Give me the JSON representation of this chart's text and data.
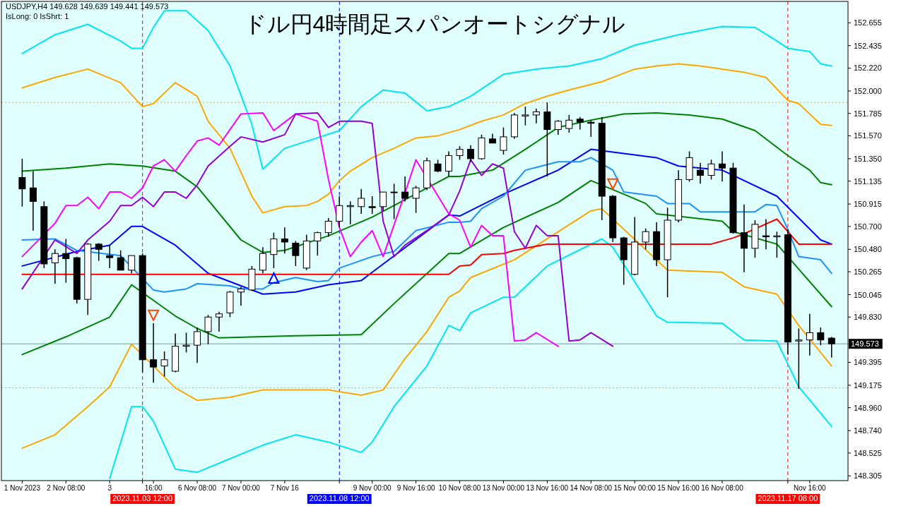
{
  "chart_data": {
    "type": "candlestick",
    "title": "ドル円4時間足スパンオートシグナル",
    "annotations": [
      "USDJPY,H4  149.628 149.639 149.441 149.573",
      "IsLong: 0 IsShrt: 1"
    ],
    "categories": [
      "1 Nov 2023",
      null,
      null,
      null,
      "2 Nov 08:00",
      null,
      null,
      null,
      "3",
      null,
      null,
      "2023.11.03 12:00",
      "16:00",
      null,
      null,
      null,
      "6 Nov 08:00",
      null,
      null,
      null,
      "7 Nov 00:00",
      null,
      null,
      null,
      "7 Nov 16",
      null,
      null,
      null,
      null,
      "2023.11.08 12:00",
      null,
      null,
      "9 Nov 00:00",
      null,
      null,
      null,
      "9 Nov 16:00",
      null,
      null,
      null,
      "10 Nov 08:00",
      null,
      null,
      null,
      "13 Nov 00:00",
      null,
      null,
      null,
      "13 Nov 16:00",
      null,
      null,
      null,
      "14 Nov 08:00",
      null,
      null,
      null,
      "15 Nov 00:00",
      null,
      null,
      null,
      "15 Nov 16:00",
      null,
      null,
      null,
      "16 Nov 08:00",
      null,
      null,
      null,
      null,
      null,
      "2023.11.17 08:00",
      null,
      "Nov 16:00",
      null,
      null
    ],
    "ohlc": [
      [
        151.17,
        151.35,
        150.89,
        151.06
      ],
      [
        151.07,
        151.23,
        150.66,
        150.94
      ],
      [
        150.89,
        150.94,
        150.3,
        150.34
      ],
      [
        150.35,
        150.48,
        150.15,
        150.44
      ],
      [
        150.44,
        150.58,
        150.16,
        150.39
      ],
      [
        150.4,
        150.41,
        149.96,
        150.0
      ],
      [
        150.0,
        150.54,
        149.85,
        150.53
      ],
      [
        150.53,
        150.54,
        150.37,
        150.48
      ],
      [
        150.42,
        150.52,
        150.3,
        150.4
      ],
      [
        150.4,
        150.47,
        150.28,
        150.28
      ],
      [
        150.28,
        150.42,
        150.25,
        150.42
      ],
      [
        150.42,
        150.44,
        149.3,
        149.42
      ],
      [
        149.42,
        149.77,
        149.2,
        149.35
      ],
      [
        149.36,
        149.5,
        149.26,
        149.42
      ],
      [
        149.31,
        149.67,
        149.3,
        149.55
      ],
      [
        149.55,
        149.68,
        149.49,
        149.56
      ],
      [
        149.56,
        149.73,
        149.39,
        149.69
      ],
      [
        149.69,
        149.85,
        149.57,
        149.83
      ],
      [
        149.83,
        149.88,
        149.69,
        149.86
      ],
      [
        149.87,
        150.08,
        149.83,
        150.07
      ],
      [
        150.07,
        150.12,
        149.94,
        150.1
      ],
      [
        150.09,
        150.32,
        150.08,
        150.29
      ],
      [
        150.28,
        150.5,
        150.25,
        150.44
      ],
      [
        150.43,
        150.64,
        150.3,
        150.58
      ],
      [
        150.58,
        150.69,
        150.44,
        150.55
      ],
      [
        150.54,
        150.56,
        150.32,
        150.42
      ],
      [
        150.3,
        150.62,
        150.28,
        150.56
      ],
      [
        150.56,
        150.65,
        150.42,
        150.64
      ],
      [
        150.64,
        150.78,
        150.6,
        150.75
      ],
      [
        150.75,
        150.99,
        150.69,
        150.9
      ],
      [
        150.89,
        150.94,
        150.72,
        150.9
      ],
      [
        150.89,
        151.06,
        150.82,
        150.97
      ],
      [
        150.89,
        150.99,
        150.82,
        150.88
      ],
      [
        150.89,
        151.03,
        150.85,
        151.03
      ],
      [
        151.03,
        151.11,
        150.77,
        151.03
      ],
      [
        151.03,
        151.18,
        150.94,
        150.97
      ],
      [
        150.97,
        151.09,
        150.83,
        151.07
      ],
      [
        151.07,
        151.36,
        151.05,
        151.33
      ],
      [
        151.3,
        151.34,
        151.22,
        151.23
      ],
      [
        151.23,
        151.42,
        151.18,
        151.38
      ],
      [
        151.38,
        151.47,
        151.34,
        151.44
      ],
      [
        151.44,
        151.48,
        151.32,
        151.35
      ],
      [
        151.35,
        151.58,
        151.34,
        151.55
      ],
      [
        151.54,
        151.59,
        151.5,
        151.5
      ],
      [
        151.43,
        151.65,
        151.39,
        151.56
      ],
      [
        151.56,
        151.79,
        151.54,
        151.77
      ],
      [
        151.76,
        151.85,
        151.67,
        151.77
      ],
      [
        151.77,
        151.83,
        151.69,
        151.8
      ],
      [
        151.8,
        151.89,
        151.18,
        151.63
      ],
      [
        151.63,
        151.72,
        151.58,
        151.71
      ],
      [
        151.64,
        151.77,
        151.6,
        151.72
      ],
      [
        151.73,
        151.75,
        151.63,
        151.7
      ],
      [
        151.7,
        151.72,
        151.56,
        151.69
      ],
      [
        151.69,
        151.75,
        150.76,
        150.99
      ],
      [
        150.99,
        151.0,
        150.55,
        150.59
      ],
      [
        150.59,
        150.6,
        150.14,
        150.38
      ],
      [
        150.24,
        150.79,
        150.23,
        150.55
      ],
      [
        150.55,
        150.68,
        150.48,
        150.65
      ],
      [
        150.65,
        150.74,
        150.32,
        150.38
      ],
      [
        150.38,
        150.88,
        150.02,
        150.76
      ],
      [
        150.76,
        151.24,
        150.74,
        151.15
      ],
      [
        151.15,
        151.42,
        151.13,
        151.36
      ],
      [
        151.24,
        151.31,
        151.11,
        151.19
      ],
      [
        151.19,
        151.34,
        151.15,
        151.3
      ],
      [
        151.3,
        151.42,
        151.13,
        151.26
      ],
      [
        151.26,
        151.31,
        150.63,
        150.64
      ],
      [
        150.64,
        150.91,
        150.26,
        150.49
      ],
      [
        150.49,
        150.76,
        150.4,
        150.72
      ],
      [
        150.61,
        150.77,
        150.48,
        150.6
      ],
      [
        150.6,
        150.65,
        150.4,
        150.61
      ],
      [
        150.62,
        150.67,
        149.47,
        149.59
      ],
      [
        149.6,
        149.72,
        149.14,
        149.61
      ],
      [
        149.61,
        149.86,
        149.46,
        149.68
      ],
      [
        149.68,
        149.73,
        149.56,
        149.61
      ],
      [
        149.628,
        149.639,
        149.441,
        149.573
      ]
    ],
    "ylim": [
      148.26,
      152.86
    ],
    "yticks": [
      {
        "value": 152.655,
        "label": "152.655"
      },
      {
        "value": 152.435,
        "label": "152.435"
      },
      {
        "value": 152.22,
        "label": "152.220"
      },
      {
        "value": 152.0,
        "label": "152.000"
      },
      {
        "value": 151.785,
        "label": "151.785"
      },
      {
        "value": 151.57,
        "label": "151.570"
      },
      {
        "value": 151.35,
        "label": "151.350"
      },
      {
        "value": 151.135,
        "label": "151.135"
      },
      {
        "value": 150.915,
        "label": "150.915"
      },
      {
        "value": 150.7,
        "label": "150.700"
      },
      {
        "value": 150.48,
        "label": "150.480"
      },
      {
        "value": 150.265,
        "label": "150.265"
      },
      {
        "value": 150.045,
        "label": "150.045"
      },
      {
        "value": 149.83,
        "label": "149.830"
      },
      {
        "value": 149.395,
        "label": "149.395"
      },
      {
        "value": 149.175,
        "label": "149.175"
      },
      {
        "value": 148.96,
        "label": "148.960"
      },
      {
        "value": 148.74,
        "label": "148.740"
      },
      {
        "value": 148.525,
        "label": "148.525"
      },
      {
        "value": 148.305,
        "label": "148.305"
      }
    ],
    "ref_lines": [
      {
        "axis": "x",
        "value": "2023.11.03 12:00",
        "color": "#ff0000",
        "line_style": "dashed"
      },
      {
        "axis": "x",
        "value": "2023.11.08 12:00",
        "color": "#0000ff",
        "line_style": "dashed"
      },
      {
        "axis": "x",
        "value": "2023.11.17 08:00",
        "color": "#ff0000",
        "line_style": "dashed"
      },
      {
        "axis": "y",
        "value": 151.89,
        "color": "#ffa500",
        "line_style": "dotted"
      },
      {
        "axis": "y",
        "value": 149.15,
        "color": "#ffa500",
        "line_style": "dotted"
      },
      {
        "axis": "y",
        "value": 149.573,
        "label": "149.573",
        "color": "#8090a0",
        "line_style": "solid"
      }
    ],
    "series": [
      {
        "type": "line",
        "color": "#00e5ee",
        "values": [
          152.36,
          null,
          null,
          152.54,
          null,
          null,
          152.64,
          null,
          null,
          152.48,
          152.41,
          152.41,
          152.61,
          152.77,
          null,
          152.77,
          null,
          152.58,
          null,
          152.24,
          null,
          151.68,
          151.25,
          null,
          151.45,
          null,
          null,
          151.55,
          null,
          151.62,
          null,
          151.85,
          null,
          152.01,
          null,
          151.98,
          null,
          151.81,
          null,
          151.85,
          null,
          151.95,
          null,
          null,
          152.16,
          null,
          null,
          152.21,
          null,
          null,
          152.24,
          null,
          null,
          152.31,
          null,
          null,
          152.44,
          null,
          null,
          null,
          152.54,
          null,
          null,
          null,
          152.62,
          null,
          null,
          152.61,
          null,
          152.48,
          152.41,
          null,
          152.38,
          152.26,
          152.24
        ]
      },
      {
        "type": "line",
        "color": "#ffa500",
        "values": [
          152.03,
          null,
          null,
          152.13,
          null,
          null,
          152.21,
          null,
          null,
          152.08,
          null,
          151.85,
          151.88,
          null,
          152.08,
          null,
          151.95,
          151.71,
          null,
          151.45,
          151.22,
          150.99,
          150.83,
          null,
          150.89,
          null,
          150.9,
          150.94,
          151.01,
          151.14,
          151.23,
          null,
          151.36,
          null,
          151.45,
          null,
          151.55,
          null,
          151.57,
          null,
          151.63,
          null,
          151.71,
          null,
          151.77,
          null,
          151.88,
          null,
          151.95,
          null,
          152.01,
          null,
          null,
          152.09,
          null,
          null,
          152.21,
          null,
          152.24,
          null,
          152.26,
          null,
          152.24,
          null,
          152.21,
          null,
          152.18,
          null,
          152.13,
          null,
          151.91,
          151.88,
          151.78,
          151.68,
          151.67
        ]
      },
      {
        "type": "line",
        "color": "#008000",
        "values": [
          151.23,
          null,
          null,
          null,
          151.26,
          null,
          null,
          null,
          151.3,
          null,
          null,
          151.28,
          null,
          null,
          151.23,
          null,
          151.08,
          null,
          null,
          null,
          150.57,
          null,
          150.45,
          null,
          150.47,
          null,
          null,
          null,
          150.61,
          null,
          null,
          null,
          150.79,
          null,
          null,
          null,
          null,
          null,
          null,
          151.18,
          151.18,
          null,
          null,
          151.24,
          null,
          null,
          151.44,
          null,
          null,
          151.65,
          null,
          null,
          151.72,
          null,
          null,
          151.78,
          null,
          null,
          151.79,
          null,
          null,
          151.77,
          null,
          null,
          151.73,
          null,
          null,
          151.62,
          null,
          null,
          151.38,
          null,
          151.24,
          151.12,
          151.1
        ]
      },
      {
        "type": "line",
        "color": "#0000ff",
        "values": [
          150.32,
          null,
          null,
          null,
          null,
          150.46,
          null,
          null,
          150.52,
          null,
          150.7,
          150.7,
          null,
          null,
          150.52,
          null,
          null,
          150.25,
          null,
          null,
          null,
          null,
          150.05,
          null,
          null,
          150.07,
          null,
          null,
          150.14,
          null,
          null,
          150.18,
          150.26,
          null,
          null,
          null,
          null,
          null,
          null,
          150.81,
          150.8,
          null,
          null,
          null,
          151.01,
          null,
          null,
          null,
          null,
          151.24,
          null,
          null,
          151.44,
          null,
          null,
          null,
          null,
          null,
          151.36,
          null,
          151.28,
          null,
          null,
          null,
          151.24,
          null,
          null,
          null,
          null,
          150.99,
          null,
          null,
          null,
          150.57,
          150.53
        ]
      },
      {
        "type": "line",
        "color": "#008000",
        "values": [
          149.47,
          null,
          null,
          null,
          149.64,
          null,
          null,
          null,
          149.83,
          null,
          150.14,
          null,
          null,
          null,
          149.84,
          null,
          149.72,
          null,
          149.63,
          null,
          null,
          null,
          null,
          null,
          null,
          149.65,
          null,
          null,
          null,
          null,
          null,
          149.66,
          null,
          null,
          149.96,
          null,
          null,
          null,
          null,
          150.44,
          150.44,
          null,
          null,
          null,
          150.69,
          null,
          null,
          null,
          null,
          150.93,
          null,
          null,
          151.14,
          null,
          null,
          151.01,
          null,
          150.92,
          150.82,
          null,
          null,
          null,
          null,
          null,
          150.75,
          150.65,
          null,
          null,
          null,
          150.53,
          null,
          150.29,
          null,
          null,
          149.93
        ]
      },
      {
        "type": "line",
        "color": "#ffa500",
        "values": [
          148.57,
          null,
          null,
          148.7,
          null,
          null,
          148.97,
          null,
          149.16,
          null,
          149.57,
          null,
          null,
          null,
          149.15,
          null,
          149.03,
          null,
          null,
          149.06,
          null,
          null,
          149.13,
          null,
          null,
          null,
          null,
          null,
          149.13,
          null,
          null,
          149.08,
          null,
          149.13,
          null,
          149.43,
          null,
          149.69,
          null,
          150.02,
          150.08,
          150.21,
          null,
          null,
          null,
          150.38,
          null,
          null,
          null,
          null,
          null,
          null,
          150.85,
          150.87,
          null,
          null,
          null,
          null,
          null,
          150.28,
          null,
          null,
          null,
          null,
          150.26,
          null,
          150.12,
          null,
          null,
          150.05,
          null,
          149.75,
          null,
          null,
          149.36
        ]
      },
      {
        "type": "line",
        "color": "#00e5ee",
        "values": [
          null,
          null,
          null,
          null,
          null,
          null,
          null,
          null,
          148.28,
          null,
          148.97,
          148.97,
          148.83,
          null,
          148.37,
          null,
          148.34,
          null,
          null,
          148.47,
          null,
          null,
          148.6,
          null,
          null,
          148.7,
          null,
          null,
          148.63,
          null,
          null,
          148.53,
          148.63,
          null,
          148.97,
          null,
          null,
          149.36,
          null,
          149.75,
          149.7,
          149.87,
          null,
          null,
          150.02,
          150.02,
          null,
          null,
          150.32,
          null,
          null,
          null,
          null,
          150.58,
          150.5,
          null,
          null,
          null,
          149.84,
          149.78,
          null,
          null,
          null,
          null,
          149.77,
          null,
          149.61,
          null,
          null,
          149.6,
          null,
          149.16,
          null,
          null,
          148.78
        ]
      },
      {
        "type": "line",
        "color": "#1e90ff",
        "values": [
          150.57,
          null,
          null,
          150.58,
          null,
          150.47,
          null,
          null,
          null,
          150.42,
          null,
          null,
          150.09,
          150.07,
          null,
          150.1,
          150.15,
          null,
          null,
          150.13,
          150.1,
          null,
          150.1,
          150.16,
          null,
          150.21,
          null,
          150.17,
          150.18,
          150.3,
          null,
          null,
          150.41,
          null,
          150.46,
          null,
          150.66,
          null,
          null,
          150.74,
          150.74,
          150.75,
          150.87,
          null,
          150.99,
          null,
          151.24,
          null,
          null,
          151.32,
          null,
          151.32,
          151.36,
          null,
          151.24,
          151.03,
          null,
          null,
          150.99,
          150.92,
          null,
          150.92,
          150.84,
          null,
          null,
          null,
          null,
          150.84,
          150.91,
          150.9,
          150.67,
          150.41,
          null,
          150.38,
          150.25
        ]
      },
      {
        "type": "line",
        "color": "#ff0000",
        "values": [
          150.24,
          null,
          null,
          null,
          null,
          null,
          null,
          null,
          null,
          null,
          null,
          null,
          null,
          null,
          null,
          null,
          null,
          null,
          null,
          null,
          null,
          null,
          null,
          null,
          null,
          null,
          null,
          null,
          null,
          null,
          null,
          null,
          null,
          null,
          null,
          null,
          null,
          null,
          null,
          150.24,
          150.32,
          150.33,
          150.43,
          null,
          150.44,
          150.47,
          null,
          null,
          150.53,
          null,
          null,
          null,
          null,
          null,
          null,
          null,
          null,
          null,
          null,
          null,
          null,
          null,
          null,
          150.53,
          null,
          150.59,
          150.63,
          null,
          null,
          150.77,
          null,
          150.53,
          null,
          null,
          150.53
        ]
      },
      {
        "type": "line",
        "color": "#ff00ff",
        "values": [
          150.41,
          null,
          null,
          150.73,
          150.9,
          150.9,
          150.98,
          150.87,
          151.03,
          151.03,
          150.97,
          151.07,
          151.28,
          151.34,
          151.23,
          151.38,
          151.52,
          151.55,
          151.48,
          null,
          151.78,
          null,
          151.79,
          151.62,
          null,
          151.78,
          null,
          151.71,
          151.15,
          150.69,
          150.41,
          150.55,
          150.66,
          150.41,
          null,
          151.02,
          151.34,
          null,
          null,
          150.82,
          150.76,
          150.5,
          150.71,
          150.61,
          150.61,
          149.6,
          149.61,
          149.68,
          null,
          149.55,
          null,
          null,
          null,
          null,
          null,
          null,
          null,
          null,
          null,
          null,
          null,
          null,
          null,
          null,
          null,
          null,
          null,
          null,
          null,
          null,
          null,
          null,
          null,
          null,
          null
        ]
      },
      {
        "type": "line",
        "color": "#9400d3",
        "values": [
          150.1,
          null,
          null,
          150.57,
          null,
          150.44,
          150.57,
          null,
          150.75,
          150.9,
          150.9,
          150.98,
          150.89,
          151.03,
          151.03,
          150.97,
          151.1,
          151.28,
          null,
          151.47,
          151.56,
          null,
          151.51,
          null,
          151.58,
          151.78,
          null,
          151.79,
          151.65,
          151.71,
          null,
          151.71,
          151.69,
          150.75,
          150.41,
          150.52,
          null,
          150.66,
          null,
          150.81,
          151.04,
          151.34,
          151.19,
          151.3,
          151.26,
          150.65,
          150.49,
          150.71,
          150.61,
          150.61,
          149.6,
          149.61,
          149.68,
          null,
          149.55,
          null,
          null,
          null,
          null,
          null,
          null,
          null,
          null,
          null,
          null,
          null,
          null,
          null,
          null,
          null,
          null,
          null,
          null,
          null,
          null
        ]
      },
      {
        "type": "scatter",
        "marker": "triangle_down",
        "color": "#ff4500",
        "values": [
          null,
          null,
          null,
          null,
          null,
          null,
          null,
          null,
          null,
          null,
          null,
          null,
          149.86,
          null,
          null,
          null,
          null,
          null,
          null,
          null,
          null,
          null,
          null,
          null,
          null,
          null,
          null,
          null,
          null,
          null,
          null,
          null,
          null,
          null,
          null,
          null,
          null,
          null,
          null,
          null,
          null,
          null,
          null,
          null,
          null,
          null,
          null,
          null,
          null,
          null,
          null,
          null,
          null,
          null,
          151.12,
          null,
          null,
          null,
          null,
          null,
          null,
          null,
          null,
          null,
          null,
          null,
          null,
          null,
          null,
          null,
          null,
          null,
          null,
          null,
          null
        ]
      },
      {
        "type": "scatter",
        "marker": "triangle",
        "color": "#0000ff",
        "values": [
          null,
          null,
          null,
          null,
          null,
          null,
          null,
          null,
          null,
          null,
          null,
          null,
          null,
          null,
          null,
          null,
          null,
          null,
          null,
          null,
          null,
          null,
          null,
          150.19,
          null,
          null,
          null,
          null,
          null,
          null,
          null,
          null,
          null,
          null,
          null,
          null,
          null,
          null,
          null,
          null,
          null,
          null,
          null,
          null,
          null,
          null,
          null,
          null,
          null,
          null,
          null,
          null,
          null,
          null,
          null,
          null,
          null,
          null,
          null,
          null,
          null,
          null,
          null,
          null,
          null,
          null,
          null,
          null,
          null,
          null,
          null,
          null,
          null,
          null,
          null
        ]
      }
    ]
  }
}
